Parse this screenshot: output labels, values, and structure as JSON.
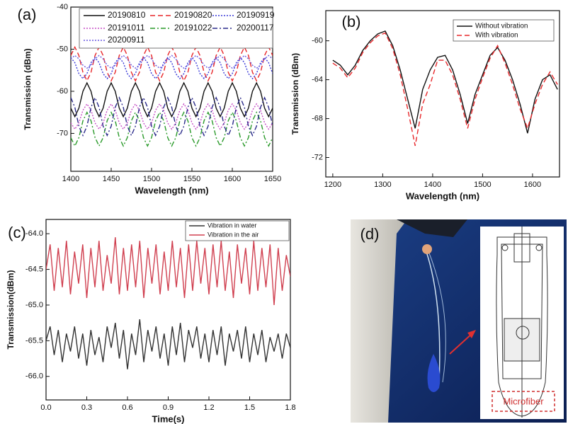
{
  "chart_data": [
    {
      "type": "line",
      "panel_label": "(a)",
      "x_label": "Wavelength (nm)",
      "y_label": "Transmission (dBm)",
      "xlim": [
        1400,
        1650
      ],
      "xticks": [
        1400,
        1450,
        1500,
        1550,
        1600,
        1650
      ],
      "ylim": [
        -79,
        -40
      ],
      "yticks": [
        -70,
        -60,
        -50,
        -40
      ],
      "legend": "upper center",
      "x": [
        1400,
        1405,
        1410,
        1415,
        1420,
        1425,
        1430,
        1435,
        1440,
        1445,
        1450,
        1455,
        1460,
        1465,
        1470,
        1475,
        1480,
        1485,
        1490,
        1495,
        1500,
        1505,
        1510,
        1515,
        1520,
        1525,
        1530,
        1535,
        1540,
        1545,
        1550,
        1555,
        1560,
        1565,
        1570,
        1575,
        1580,
        1585,
        1590,
        1595,
        1600,
        1605,
        1610,
        1615,
        1620,
        1625,
        1630,
        1635,
        1640,
        1645,
        1650
      ],
      "series": [
        {
          "name": "20190810",
          "color": "#111111",
          "dash": "solid",
          "values": [
            -64,
            -66,
            -64,
            -60,
            -58,
            -60,
            -64,
            -66,
            -64,
            -60,
            -58,
            -60,
            -64,
            -66,
            -64,
            -60,
            -58,
            -60,
            -64,
            -66,
            -64,
            -60,
            -58,
            -60,
            -64,
            -66,
            -64,
            -60,
            -58,
            -60,
            -64,
            -66,
            -64,
            -60,
            -58,
            -60,
            -64,
            -66,
            -64,
            -60,
            -58,
            -60,
            -64,
            -66,
            -64,
            -60,
            -58,
            -60,
            -64,
            -66,
            -64
          ]
        },
        {
          "name": "20190820",
          "color": "#e8282b",
          "dash": "dashed",
          "values": [
            -51.5,
            -49.5,
            -51.5,
            -55.5,
            -57.5,
            -55.5,
            -51.5,
            -49.5,
            -51.5,
            -55.5,
            -57.5,
            -55.5,
            -51.5,
            -49.5,
            -51.5,
            -55.5,
            -57.5,
            -55.5,
            -51.5,
            -49.5,
            -51.5,
            -55.5,
            -57.5,
            -55.5,
            -51.5,
            -49.5,
            -51.5,
            -55.5,
            -57.5,
            -55.5,
            -51.5,
            -49.5,
            -51.5,
            -55.5,
            -57.5,
            -55.5,
            -51.5,
            -49.5,
            -51.5,
            -55.5,
            -57.5,
            -55.5,
            -51.5,
            -49.5,
            -51.5,
            -55.5,
            -57.5,
            -55.5,
            -51.5,
            -49.5,
            -51.5
          ]
        },
        {
          "name": "20190919",
          "color": "#3a3ad8",
          "dash": "dotted",
          "values": [
            -52,
            -53.2,
            -55.8,
            -57,
            -55.8,
            -53.2,
            -52,
            -53.2,
            -55.8,
            -57,
            -55.8,
            -53.2,
            -52,
            -53.2,
            -55.8,
            -57,
            -55.8,
            -53.2,
            -52,
            -53.2,
            -55.8,
            -57,
            -55.8,
            -53.2,
            -52,
            -53.2,
            -55.8,
            -57,
            -55.8,
            -53.2,
            -52,
            -53.2,
            -55.8,
            -57,
            -55.8,
            -53.2,
            -52,
            -53.2,
            -55.8,
            -57,
            -55.8,
            -53.2,
            -52,
            -53.2,
            -55.8,
            -57,
            -55.8,
            -53.2,
            -52,
            -53.2,
            -55.8
          ]
        },
        {
          "name": "20191011",
          "color": "#c64fc6",
          "dash": "dotted",
          "values": [
            -67.5,
            -69,
            -67.5,
            -64.5,
            -63,
            -64.5,
            -67.5,
            -69,
            -67.5,
            -64.5,
            -63,
            -64.5,
            -67.5,
            -69,
            -67.5,
            -64.5,
            -63,
            -64.5,
            -67.5,
            -69,
            -67.5,
            -64.5,
            -63,
            -64.5,
            -67.5,
            -69,
            -67.5,
            -64.5,
            -63,
            -64.5,
            -67.5,
            -69,
            -67.5,
            -64.5,
            -63,
            -64.5,
            -67.5,
            -69,
            -67.5,
            -64.5,
            -63,
            -64.5,
            -67.5,
            -69,
            -67.5,
            -64.5,
            -63,
            -64.5,
            -67.5,
            -69,
            -67.5
          ]
        },
        {
          "name": "20191022",
          "color": "#2a9a2a",
          "dash": "dashdot",
          "values": [
            -71,
            -73,
            -71,
            -67,
            -65,
            -67,
            -71,
            -73,
            -71,
            -67,
            -65,
            -67,
            -71,
            -73,
            -71,
            -67,
            -65,
            -67,
            -71,
            -73,
            -71,
            -67,
            -65,
            -67,
            -71,
            -73,
            -71,
            -67,
            -65,
            -67,
            -71,
            -73,
            -71,
            -67,
            -65,
            -67,
            -71,
            -73,
            -71,
            -67,
            -65,
            -67,
            -71,
            -73,
            -71,
            -67,
            -65,
            -67,
            -71,
            -73,
            -71
          ]
        },
        {
          "name": "20200117",
          "color": "#2a2a8a",
          "dash": "dashdot",
          "values": [
            -61.5,
            -63.8,
            -68.3,
            -70.5,
            -68.3,
            -63.8,
            -61.5,
            -63.8,
            -68.3,
            -70.5,
            -68.3,
            -63.8,
            -61.5,
            -63.8,
            -68.3,
            -70.5,
            -68.3,
            -63.8,
            -61.5,
            -63.8,
            -68.3,
            -70.5,
            -68.3,
            -63.8,
            -61.5,
            -63.8,
            -68.3,
            -70.5,
            -68.3,
            -63.8,
            -61.5,
            -63.8,
            -68.3,
            -70.5,
            -68.3,
            -63.8,
            -61.5,
            -63.8,
            -68.3,
            -70.5,
            -68.3,
            -63.8,
            -61.5,
            -63.8,
            -68.3,
            -70.5,
            -68.3,
            -63.8,
            -61.5,
            -63.8,
            -68.3
          ]
        },
        {
          "name": "20200911",
          "color": "#6a5ae0",
          "dash": "dotted",
          "values": [
            -52.3,
            -51.5,
            -52.3,
            -53.8,
            -54.5,
            -53.8,
            -52.3,
            -51.5,
            -52.3,
            -53.8,
            -54.5,
            -53.8,
            -52.3,
            -51.5,
            -52.3,
            -53.8,
            -54.5,
            -53.8,
            -52.3,
            -51.5,
            -52.3,
            -53.8,
            -54.5,
            -53.8,
            -52.3,
            -51.5,
            -52.3,
            -53.8,
            -54.5,
            -53.8,
            -52.3,
            -51.5,
            -52.3,
            -53.8,
            -54.5,
            -53.8,
            -52.3,
            -51.5,
            -52.3,
            -53.8,
            -54.5,
            -53.8,
            -52.3,
            -51.5,
            -52.3,
            -53.8,
            -54.5,
            -53.8,
            -52.3,
            -51.5,
            -52.3
          ]
        }
      ]
    },
    {
      "type": "line",
      "panel_label": "(b)",
      "x_label": "Wavelength (nm)",
      "y_label": "Transmission (dBm)",
      "xlim": [
        1186,
        1654
      ],
      "xticks": [
        1200,
        1300,
        1400,
        1500,
        1600
      ],
      "ylim": [
        -74,
        -56.9
      ],
      "yticks": [
        -72,
        -68,
        -64,
        -60
      ],
      "legend": "upper right",
      "x": [
        1200,
        1215,
        1230,
        1245,
        1260,
        1275,
        1290,
        1305,
        1320,
        1335,
        1350,
        1365,
        1380,
        1395,
        1410,
        1425,
        1440,
        1455,
        1470,
        1485,
        1500,
        1515,
        1530,
        1545,
        1560,
        1575,
        1590,
        1605,
        1620,
        1635,
        1650
      ],
      "series": [
        {
          "name": "Without vibration",
          "color": "#111111",
          "dash": "solid",
          "values": [
            -62.0,
            -62.5,
            -63.5,
            -62.5,
            -61.0,
            -60.0,
            -59.3,
            -59.0,
            -60.5,
            -63.0,
            -66.0,
            -69.0,
            -65.0,
            -63.0,
            -61.7,
            -61.5,
            -63.0,
            -65.5,
            -68.5,
            -65.5,
            -63.5,
            -61.5,
            -60.7,
            -62.0,
            -64.0,
            -66.5,
            -69.5,
            -66.0,
            -64.0,
            -63.5,
            -65.0
          ]
        },
        {
          "name": "With vibration",
          "color": "#e8282b",
          "dash": "dashed",
          "values": [
            -62.3,
            -62.8,
            -63.8,
            -62.8,
            -61.2,
            -60.2,
            -59.5,
            -59.2,
            -60.8,
            -63.5,
            -67.0,
            -70.8,
            -66.5,
            -64.5,
            -62.0,
            -62.0,
            -63.5,
            -66.0,
            -69.0,
            -66.0,
            -63.8,
            -61.8,
            -60.5,
            -62.3,
            -64.5,
            -67.0,
            -69.0,
            -66.5,
            -64.5,
            -63.2,
            -64.5
          ]
        }
      ]
    },
    {
      "type": "line",
      "panel_label": "(c)",
      "x_label": "Time(s)",
      "y_label": "Transmission(dBm)",
      "xlim": [
        0,
        1.8
      ],
      "xticks": [
        {
          "value": 0,
          "label": "0.0"
        },
        0.3,
        0.6,
        0.9,
        1.2,
        1.5,
        1.8
      ],
      "ylim": [
        -66.33,
        -63.8
      ],
      "yticks": [
        {
          "value": -66,
          "label": "-66.0"
        },
        -65.5,
        {
          "value": -65,
          "label": "-65.0"
        },
        -64.5,
        {
          "value": -64,
          "label": "-64.0"
        }
      ],
      "legend": "upper right",
      "x": [
        0,
        0.03,
        0.06,
        0.09,
        0.12,
        0.15,
        0.18,
        0.21,
        0.24,
        0.27,
        0.3,
        0.33,
        0.36,
        0.39,
        0.42,
        0.45,
        0.48,
        0.51,
        0.54,
        0.57,
        0.6,
        0.63,
        0.66,
        0.69,
        0.72,
        0.75,
        0.78,
        0.81,
        0.84,
        0.87,
        0.9,
        0.93,
        0.96,
        0.99,
        1.02,
        1.05,
        1.08,
        1.11,
        1.14,
        1.17,
        1.2,
        1.23,
        1.26,
        1.29,
        1.32,
        1.35,
        1.38,
        1.41,
        1.44,
        1.47,
        1.5,
        1.53,
        1.56,
        1.59,
        1.62,
        1.65,
        1.68,
        1.71,
        1.74,
        1.77,
        1.8
      ],
      "series": [
        {
          "name": "Vibration in water",
          "color": "#333333",
          "dash": "solid",
          "values": [
            -65.5,
            -65.3,
            -65.7,
            -65.35,
            -65.8,
            -65.4,
            -65.65,
            -65.3,
            -65.75,
            -65.4,
            -65.85,
            -65.35,
            -65.7,
            -65.45,
            -65.8,
            -65.3,
            -65.6,
            -65.25,
            -65.75,
            -65.35,
            -65.9,
            -65.4,
            -65.7,
            -65.2,
            -65.8,
            -65.35,
            -65.65,
            -65.3,
            -65.75,
            -65.4,
            -65.85,
            -65.3,
            -65.7,
            -65.25,
            -65.8,
            -65.35,
            -65.6,
            -65.3,
            -65.75,
            -65.4,
            -65.8,
            -65.35,
            -65.7,
            -65.3,
            -65.85,
            -65.4,
            -65.65,
            -65.35,
            -65.75,
            -65.3,
            -65.8,
            -65.4,
            -65.7,
            -65.35,
            -65.8,
            -65.45,
            -65.65,
            -65.4,
            -65.75,
            -65.4,
            -65.6
          ]
        },
        {
          "name": "Vibration in the air",
          "color": "#d04050",
          "dash": "solid",
          "values": [
            -64.5,
            -64.15,
            -64.8,
            -64.2,
            -64.75,
            -64.1,
            -64.85,
            -64.25,
            -64.7,
            -64.15,
            -64.9,
            -64.2,
            -64.75,
            -64.1,
            -64.8,
            -64.3,
            -64.7,
            -64.05,
            -64.85,
            -64.2,
            -64.8,
            -64.15,
            -64.75,
            -64.1,
            -64.9,
            -64.2,
            -64.7,
            -64.15,
            -64.85,
            -64.25,
            -64.8,
            -64.1,
            -64.75,
            -64.2,
            -64.9,
            -64.15,
            -64.8,
            -64.1,
            -64.7,
            -64.2,
            -64.85,
            -64.15,
            -64.75,
            -64.1,
            -64.8,
            -64.25,
            -64.9,
            -64.15,
            -64.7,
            -64.2,
            -64.85,
            -64.1,
            -64.8,
            -64.2,
            -64.75,
            -64.15,
            -65.0,
            -64.2,
            -64.8,
            -64.3,
            -64.6
          ]
        }
      ]
    }
  ],
  "photo": {
    "panel_label": "(d)",
    "inset_label": "Microfiber"
  }
}
